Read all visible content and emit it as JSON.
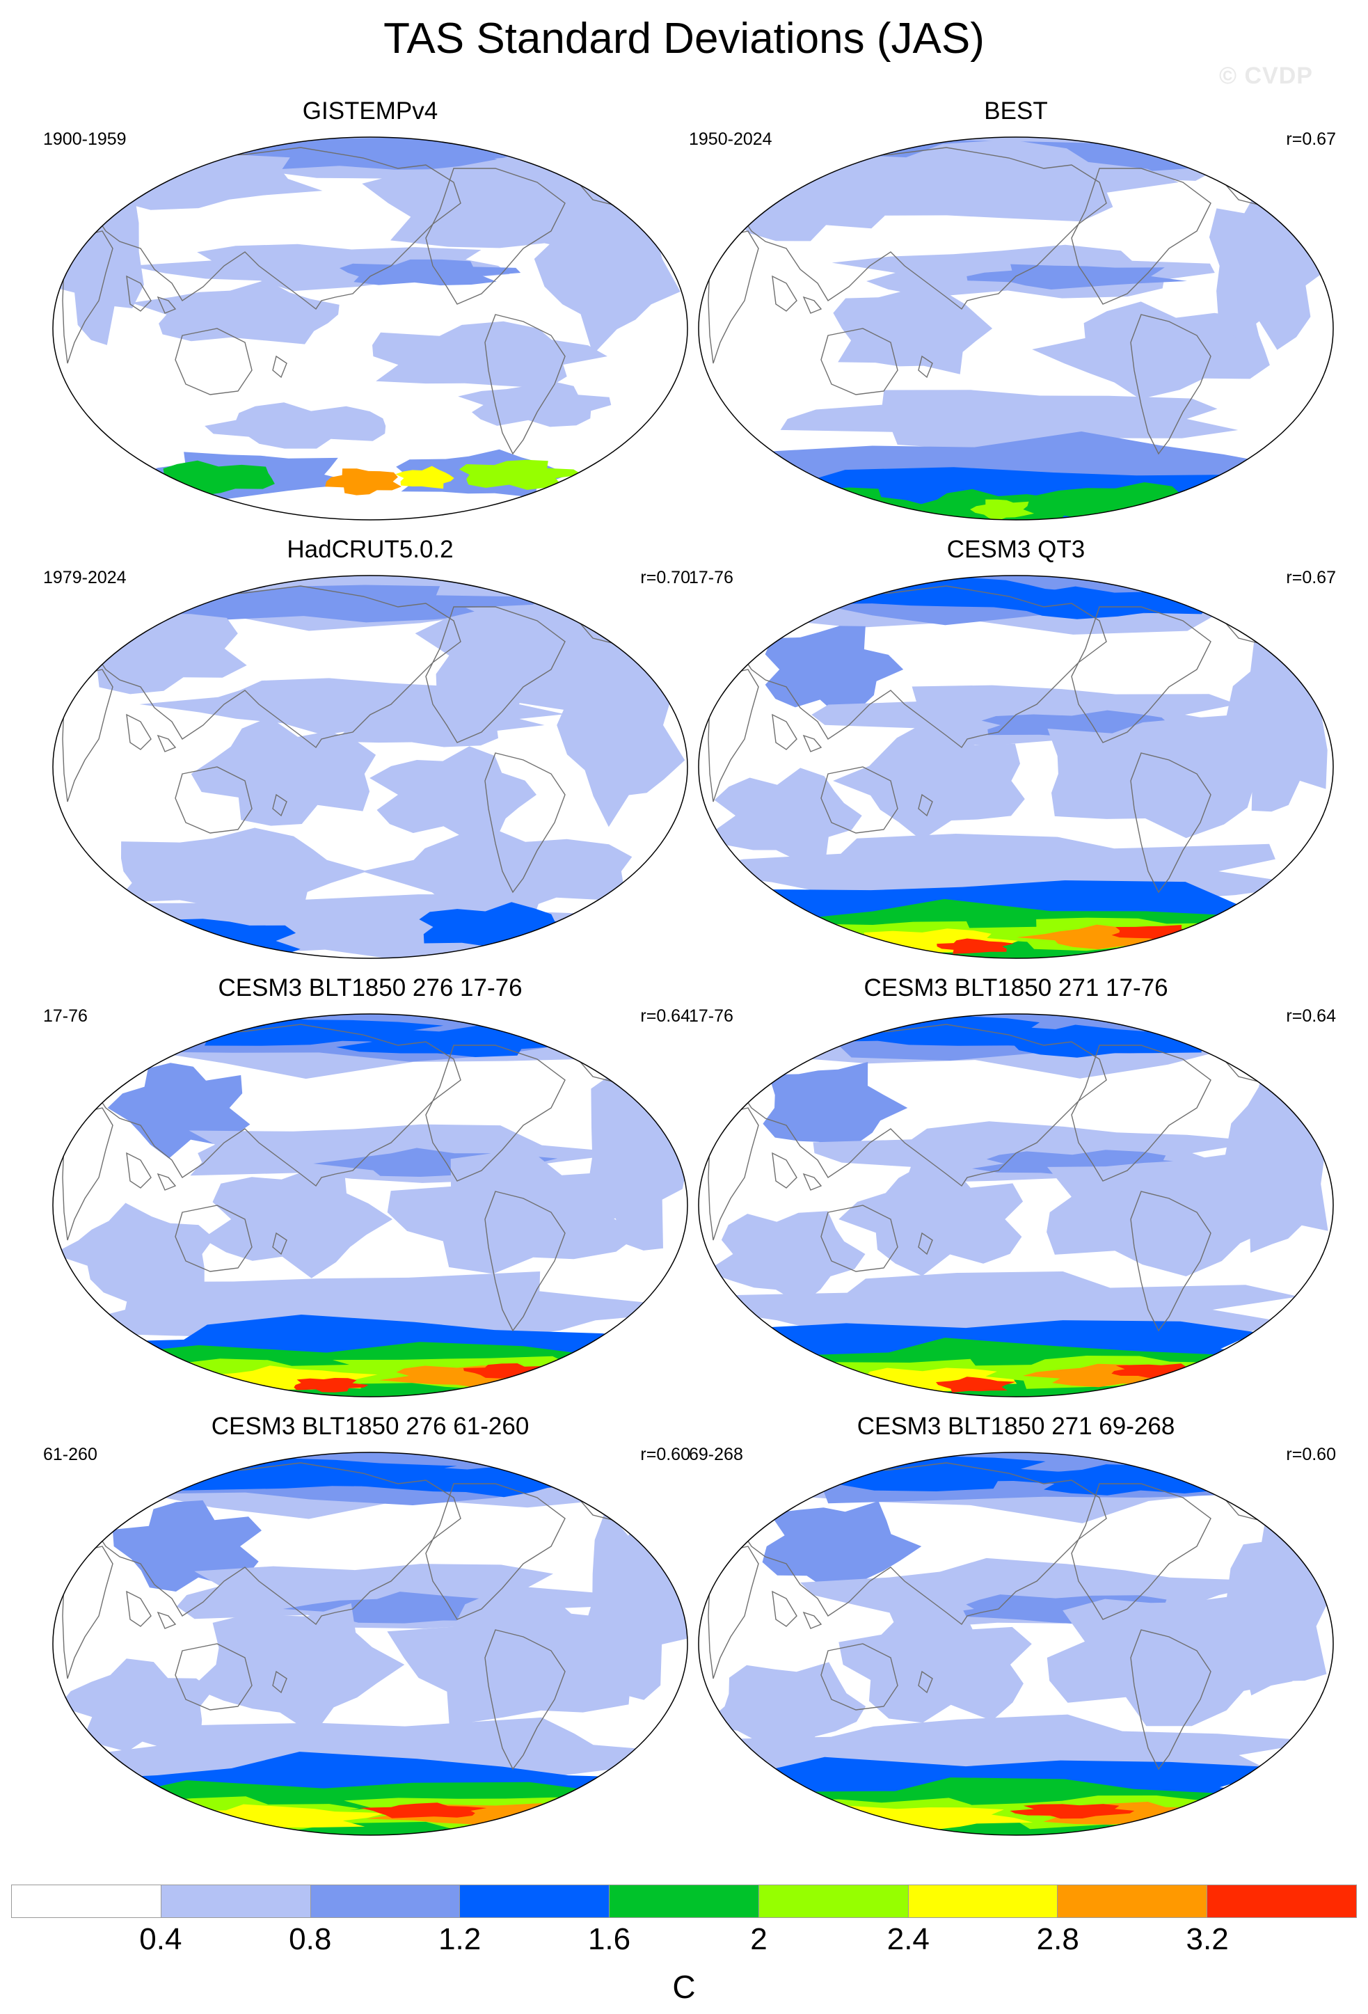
{
  "title": "TAS Standard Deviations (JAS)",
  "watermark": "© CVDP",
  "colorbar": {
    "colors": [
      "#ffffff",
      "#b4c2f5",
      "#7a98f0",
      "#0060ff",
      "#00c22a",
      "#96ff00",
      "#ffff00",
      "#ff9900",
      "#ff2a00"
    ],
    "ticks": [
      "0.4",
      "0.8",
      "1.2",
      "1.6",
      "2",
      "2.4",
      "2.8",
      "3.2"
    ],
    "tick_values": [
      0.4,
      0.8,
      1.2,
      1.6,
      2.0,
      2.4,
      2.8,
      3.2
    ],
    "units": "C"
  },
  "panels": [
    {
      "title": "GISTEMPv4",
      "period": "1900-1959",
      "corr": "",
      "style": "gistemp"
    },
    {
      "title": "BEST",
      "period": "1950-2024",
      "corr": "r=0.67",
      "style": "best"
    },
    {
      "title": "HadCRUT5.0.2",
      "period": "1979-2024",
      "corr": "r=0.70",
      "style": "hadcrut"
    },
    {
      "title": "CESM3 QT3",
      "period": "17-76",
      "corr": "r=0.67",
      "style": "model"
    },
    {
      "title": "CESM3 BLT1850 276 17-76",
      "period": "17-76",
      "corr": "r=0.64",
      "style": "model"
    },
    {
      "title": "CESM3 BLT1850 271 17-76",
      "period": "17-76",
      "corr": "r=0.64",
      "style": "model"
    },
    {
      "title": "CESM3 BLT1850 276 61-260",
      "period": "61-260",
      "corr": "r=0.60",
      "style": "model2"
    },
    {
      "title": "CESM3 BLT1850 271 69-268",
      "period": "69-268",
      "corr": "r=0.60",
      "style": "model2"
    }
  ]
}
